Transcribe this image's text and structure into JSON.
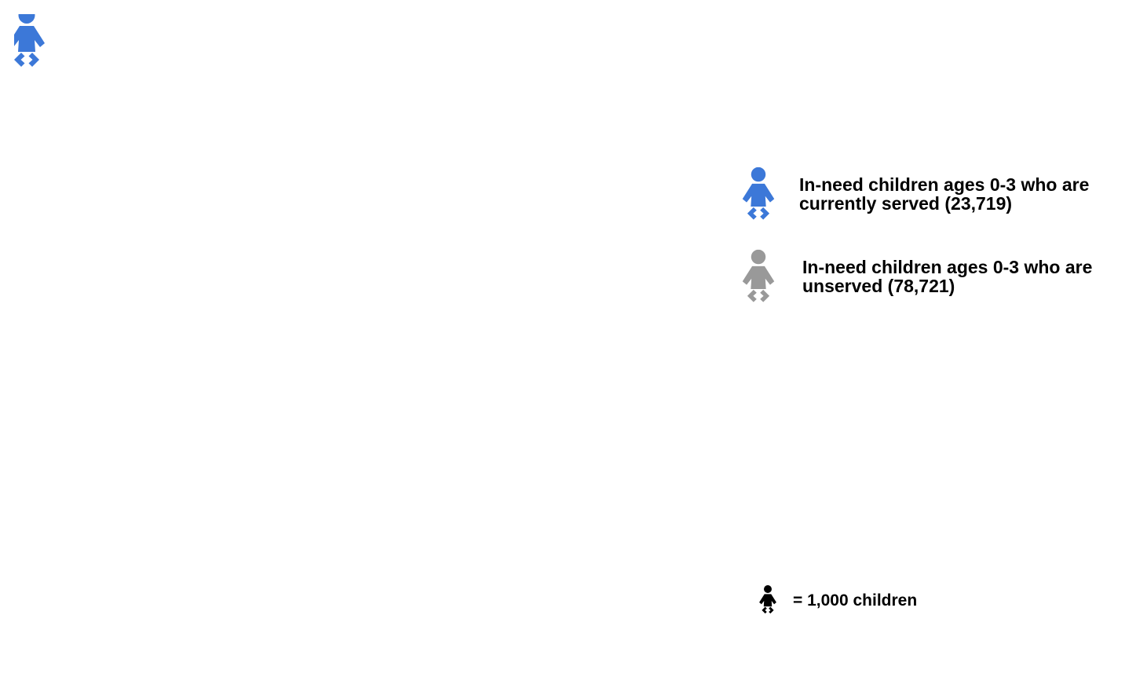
{
  "chart_data": {
    "type": "pictograph",
    "columns": 12,
    "series": [
      {
        "name": "In-need children ages 0-3 who are currently served (23,719)",
        "value": 23.719,
        "color": "#3c78d8"
      },
      {
        "name": "In-need children ages 0-3 who are unserved (78,721)",
        "value": 78.721,
        "color": "#999999"
      }
    ],
    "icon": "baby-icon",
    "unit_label": "= 1,000 children",
    "icon_value": 1000
  },
  "legend": {
    "served_label": "In-need children ages 0-3 who are currently served (23,719)",
    "unserved_label": "In-need children ages 0-3 who are unserved (78,721)",
    "scale_label": "= 1,000 children"
  }
}
